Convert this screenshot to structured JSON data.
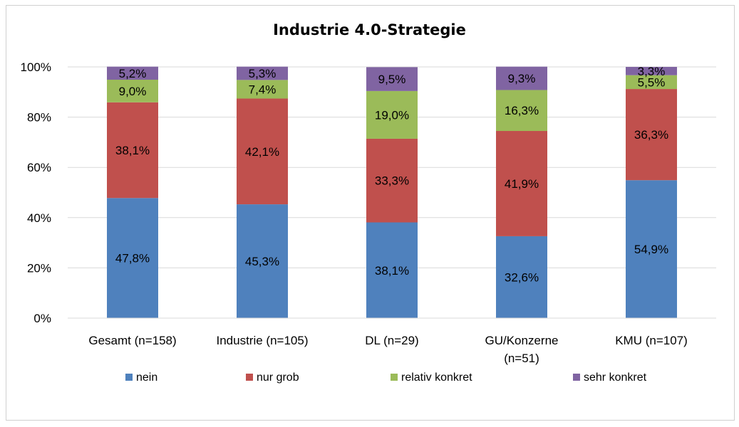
{
  "chart_data": {
    "type": "bar",
    "stacked": true,
    "title": "Industrie 4.0-Strategie",
    "xlabel": "",
    "ylabel": "",
    "ylim": [
      0,
      100
    ],
    "yticks": [
      "0%",
      "20%",
      "40%",
      "60%",
      "80%",
      "100%"
    ],
    "ytick_values": [
      0,
      20,
      40,
      60,
      80,
      100
    ],
    "grid": true,
    "legend_position": "bottom",
    "categories": [
      [
        "Gesamt (n=158)"
      ],
      [
        "Industrie (n=105)"
      ],
      [
        "DL (n=29)"
      ],
      [
        "GU/Konzerne",
        "(n=51)"
      ],
      [
        "KMU (n=107)"
      ]
    ],
    "series": [
      {
        "name": "nein",
        "color": "#4F81BD",
        "values": [
          47.8,
          45.3,
          38.1,
          32.6,
          54.9
        ],
        "labels": [
          "47,8%",
          "45,3%",
          "38,1%",
          "32,6%",
          "54,9%"
        ]
      },
      {
        "name": "nur grob",
        "color": "#C0504D",
        "values": [
          38.1,
          42.1,
          33.3,
          41.9,
          36.3
        ],
        "labels": [
          "38,1%",
          "42,1%",
          "33,3%",
          "41,9%",
          "36,3%"
        ]
      },
      {
        "name": "relativ konkret",
        "color": "#9BBB59",
        "values": [
          9.0,
          7.4,
          19.0,
          16.3,
          5.5
        ],
        "labels": [
          "9,0%",
          "7,4%",
          "19,0%",
          "16,3%",
          "5,5%"
        ]
      },
      {
        "name": "sehr konkret",
        "color": "#8064A2",
        "values": [
          5.2,
          5.3,
          9.5,
          9.3,
          3.3
        ],
        "labels": [
          "5,2%",
          "5,3%",
          "9,5%",
          "9,3%",
          "3,3%"
        ]
      }
    ]
  }
}
